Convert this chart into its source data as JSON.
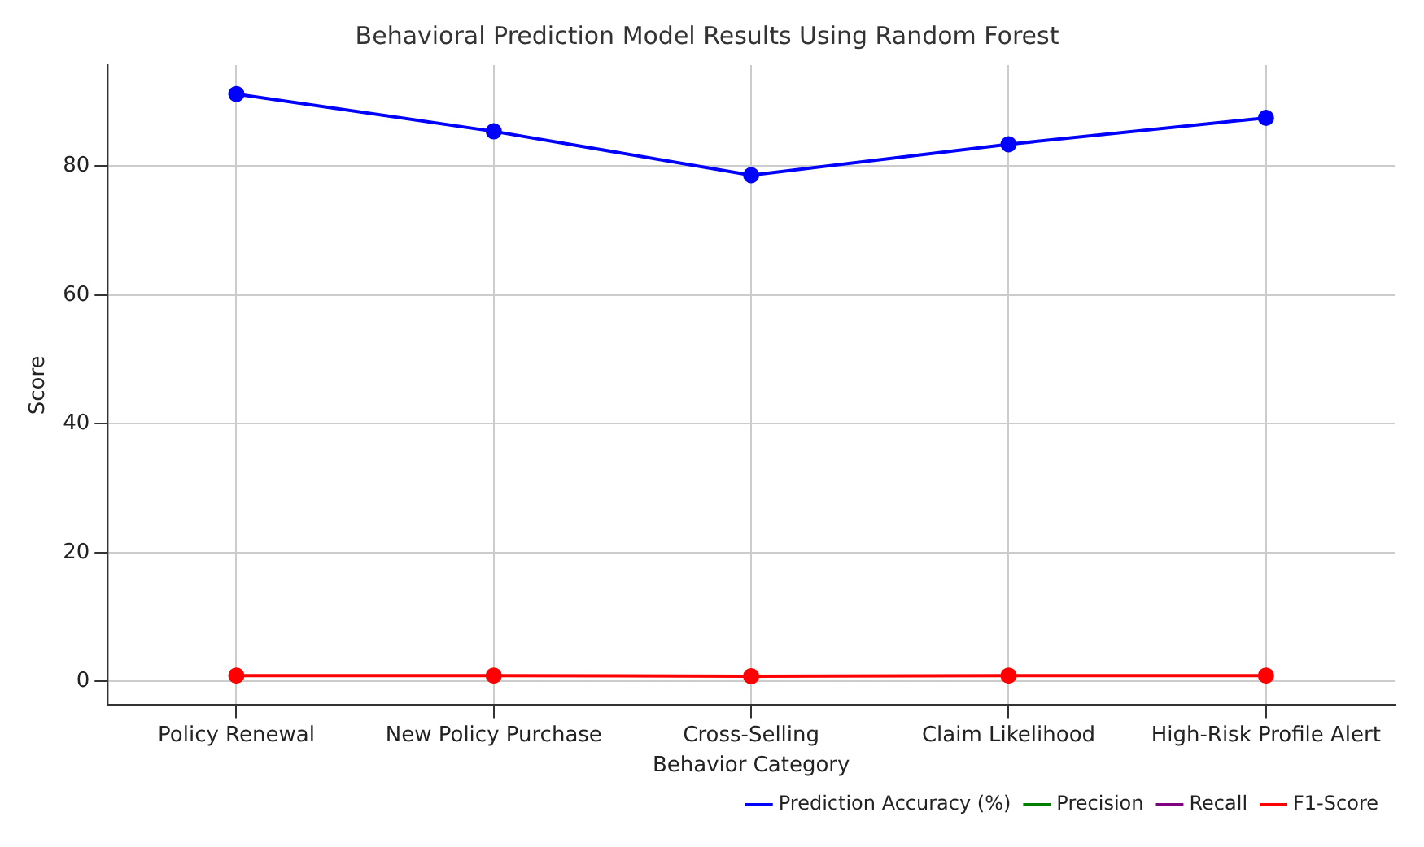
{
  "chart_data": {
    "type": "line",
    "title": "Behavioral Prediction Model Results Using Random Forest",
    "xlabel": "Behavior Category",
    "ylabel": "Score",
    "categories": [
      "Policy Renewal",
      "New Policy Purchase",
      "Cross-Selling",
      "Claim Likelihood",
      "High-Risk Profile Alert"
    ],
    "series": [
      {
        "name": "Prediction Accuracy (%)",
        "color": "#0000ff",
        "values": [
          91.2,
          85.4,
          78.6,
          83.4,
          87.5
        ]
      },
      {
        "name": "Precision",
        "color": "#008000",
        "values": [
          null,
          null,
          null,
          null,
          null
        ]
      },
      {
        "name": "Recall",
        "color": "#800080",
        "values": [
          null,
          null,
          null,
          null,
          null
        ]
      },
      {
        "name": "F1-Score",
        "color": "#ff0000",
        "values": [
          0.9,
          0.9,
          0.8,
          0.9,
          0.9
        ]
      }
    ],
    "ylim": [
      -3.7,
      95.7
    ],
    "yticks": [
      0,
      20,
      40,
      60,
      80
    ],
    "grid": true,
    "legend": "bottom right",
    "marker": "circle",
    "line_style": "solid"
  }
}
